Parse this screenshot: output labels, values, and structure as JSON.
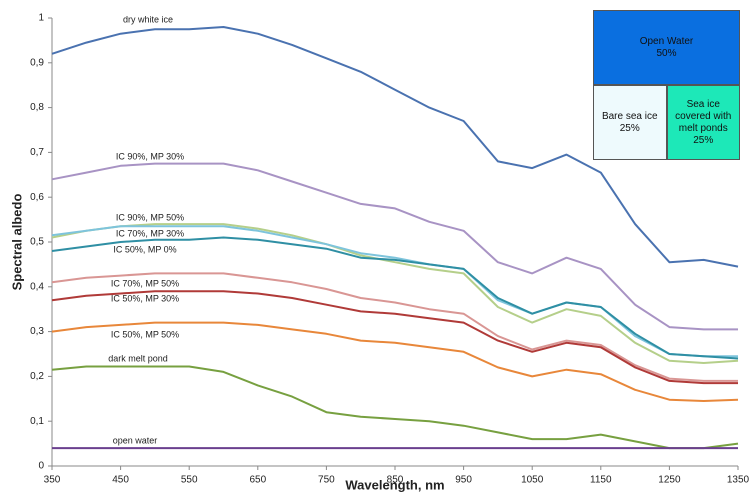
{
  "chart_data": {
    "type": "line",
    "x_label": "Wavelength, nm",
    "y_label": "Spectral albedo",
    "x": [
      350,
      400,
      450,
      500,
      550,
      600,
      650,
      700,
      750,
      800,
      850,
      900,
      950,
      1000,
      1050,
      1100,
      1150,
      1200,
      1250,
      1300,
      1350
    ],
    "xlim": [
      350,
      1350
    ],
    "xticks": [
      350,
      450,
      550,
      650,
      750,
      850,
      950,
      1050,
      1150,
      1250,
      1350
    ],
    "ylim": [
      0,
      1
    ],
    "yticks": [
      0,
      {
        "value": 0.1,
        "label": "0,1"
      },
      {
        "value": 0.2,
        "label": "0,2"
      },
      {
        "value": 0.3,
        "label": "0,3"
      },
      {
        "value": 0.4,
        "label": "0,4"
      },
      {
        "value": 0.5,
        "label": "0,5"
      },
      {
        "value": 0.6,
        "label": "0,6"
      },
      {
        "value": 0.7,
        "label": "0,7"
      },
      {
        "value": 0.8,
        "label": "0,8"
      },
      {
        "value": 0.9,
        "label": "0,9"
      },
      1
    ],
    "grid": false,
    "series": [
      {
        "name": "dry white ice",
        "color": "#4a72b0",
        "values": [
          0.92,
          0.945,
          0.965,
          0.975,
          0.975,
          0.98,
          0.965,
          0.94,
          0.91,
          0.88,
          0.84,
          0.8,
          0.77,
          0.68,
          0.665,
          0.695,
          0.655,
          0.54,
          0.455,
          0.46,
          0.445
        ]
      },
      {
        "name": "IC 90%, MP 30%",
        "color": "#a893c4",
        "values": [
          0.64,
          0.655,
          0.67,
          0.675,
          0.675,
          0.675,
          0.66,
          0.635,
          0.61,
          0.585,
          0.575,
          0.545,
          0.525,
          0.455,
          0.43,
          0.465,
          0.44,
          0.36,
          0.31,
          0.305,
          0.305
        ]
      },
      {
        "name": "IC 90%, MP 50%",
        "color": "#b5cf8a",
        "values": [
          0.51,
          0.525,
          0.535,
          0.54,
          0.54,
          0.54,
          0.53,
          0.515,
          0.495,
          0.47,
          0.455,
          0.44,
          0.43,
          0.355,
          0.32,
          0.35,
          0.335,
          0.275,
          0.235,
          0.23,
          0.235
        ]
      },
      {
        "name": "IC 70%, MP 30%",
        "color": "#7ec4dc",
        "values": [
          0.515,
          0.525,
          0.535,
          0.535,
          0.535,
          0.535,
          0.525,
          0.51,
          0.495,
          0.475,
          0.465,
          0.45,
          0.44,
          0.37,
          0.34,
          0.365,
          0.355,
          0.29,
          0.25,
          0.245,
          0.245
        ]
      },
      {
        "name": "IC 50%, MP 0%",
        "color": "#2f8fa4",
        "values": [
          0.48,
          0.49,
          0.5,
          0.505,
          0.505,
          0.51,
          0.505,
          0.495,
          0.485,
          0.465,
          0.46,
          0.45,
          0.44,
          0.375,
          0.34,
          0.365,
          0.355,
          0.295,
          0.25,
          0.245,
          0.24
        ]
      },
      {
        "name": "IC 70%, MP 50%",
        "color": "#d99694",
        "values": [
          0.41,
          0.42,
          0.425,
          0.43,
          0.43,
          0.43,
          0.42,
          0.41,
          0.395,
          0.375,
          0.365,
          0.35,
          0.34,
          0.29,
          0.26,
          0.28,
          0.27,
          0.225,
          0.195,
          0.19,
          0.19
        ]
      },
      {
        "name": "IC 50%, MP 30%",
        "color": "#b03a38",
        "values": [
          0.37,
          0.38,
          0.385,
          0.39,
          0.39,
          0.39,
          0.385,
          0.375,
          0.36,
          0.345,
          0.34,
          0.33,
          0.32,
          0.28,
          0.255,
          0.275,
          0.265,
          0.22,
          0.19,
          0.185,
          0.185
        ]
      },
      {
        "name": "IC 50%, MP 50%",
        "color": "#e8873a",
        "values": [
          0.3,
          0.31,
          0.315,
          0.32,
          0.32,
          0.32,
          0.315,
          0.305,
          0.295,
          0.28,
          0.275,
          0.265,
          0.255,
          0.22,
          0.2,
          0.215,
          0.205,
          0.17,
          0.148,
          0.145,
          0.148
        ]
      },
      {
        "name": "dark melt pond",
        "color": "#77a040",
        "values": [
          0.215,
          0.222,
          0.222,
          0.222,
          0.222,
          0.21,
          0.18,
          0.155,
          0.12,
          0.11,
          0.105,
          0.1,
          0.09,
          0.075,
          0.06,
          0.06,
          0.07,
          0.055,
          0.04,
          0.04,
          0.05
        ]
      },
      {
        "name": "open water",
        "color": "#6a3f8e",
        "values": [
          0.04,
          0.04,
          0.04,
          0.04,
          0.04,
          0.04,
          0.04,
          0.04,
          0.04,
          0.04,
          0.04,
          0.04,
          0.04,
          0.04,
          0.04,
          0.04,
          0.04,
          0.04,
          0.04,
          0.04,
          0.04
        ]
      }
    ],
    "inset": {
      "blocks": [
        {
          "label": "Open Water",
          "value": 50,
          "value_label": "50%",
          "color": "#0a6fe0"
        },
        {
          "label": "Bare sea ice",
          "value": 25,
          "value_label": "25%",
          "color": "#eefafd"
        },
        {
          "label": "Sea ice covered with melt ponds",
          "value": 25,
          "value_label": "25%",
          "color": "#1de8b8"
        }
      ]
    }
  }
}
